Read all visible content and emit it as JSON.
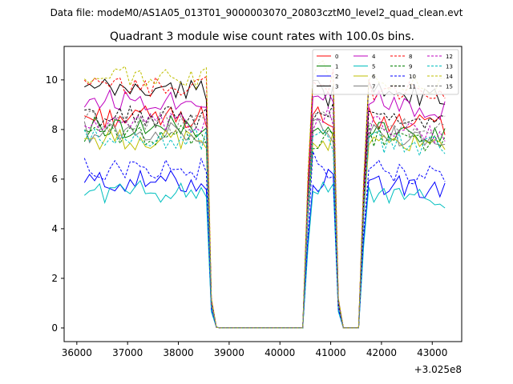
{
  "chart_data": {
    "type": "line",
    "supertitle": "Data file: modeM0/AS1A05_013T01_9000003070_20803cztM0_level2_quad_clean.evt",
    "title": "Quadrant 3 module wise count rates with 100.0s bins.",
    "xlabel": "",
    "ylabel": "",
    "x_offset_label": "+3.025e8",
    "xlim": [
      35750,
      43580
    ],
    "ylim": [
      -0.55,
      11.35
    ],
    "x_ticks": [
      36000,
      37000,
      38000,
      39000,
      40000,
      41000,
      42000,
      43000
    ],
    "x_tick_labels": [
      "36000",
      "37000",
      "38000",
      "39000",
      "40000",
      "41000",
      "42000",
      "43000"
    ],
    "y_ticks": [
      0,
      2,
      4,
      6,
      8,
      10
    ],
    "y_tick_labels": [
      "0",
      "2",
      "4",
      "6",
      "8",
      "10"
    ],
    "legend_position": "upper-right",
    "legend_columns": 4,
    "bin_seconds": 100,
    "segments": [
      {
        "start": 36150,
        "end": 38550
      },
      {
        "start": 40550,
        "end": 41050
      },
      {
        "start": 41650,
        "end": 43250
      }
    ],
    "series": [
      {
        "name": "0",
        "color": "#ff0000",
        "dashed": false,
        "level": 8.5
      },
      {
        "name": "1",
        "color": "#008000",
        "dashed": false,
        "level": 8.1
      },
      {
        "name": "2",
        "color": "#0000ff",
        "dashed": false,
        "level": 5.9
      },
      {
        "name": "3",
        "color": "#000000",
        "dashed": false,
        "level": 9.6
      },
      {
        "name": "4",
        "color": "#bf00bf",
        "dashed": false,
        "level": 9.2
      },
      {
        "name": "5",
        "color": "#00bfbf",
        "dashed": false,
        "level": 5.5
      },
      {
        "name": "6",
        "color": "#bfbf00",
        "dashed": false,
        "level": 7.6
      },
      {
        "name": "7",
        "color": "#808080",
        "dashed": false,
        "level": 7.9
      },
      {
        "name": "8",
        "color": "#ff0000",
        "dashed": true,
        "level": 9.7
      },
      {
        "name": "9",
        "color": "#008000",
        "dashed": true,
        "level": 7.8
      },
      {
        "name": "10",
        "color": "#0000ff",
        "dashed": true,
        "level": 6.4
      },
      {
        "name": "11",
        "color": "#000000",
        "dashed": true,
        "level": 8.5
      },
      {
        "name": "12",
        "color": "#bf00bf",
        "dashed": true,
        "level": 8.2
      },
      {
        "name": "13",
        "color": "#00bfbf",
        "dashed": true,
        "level": 7.6
      },
      {
        "name": "14",
        "color": "#bfbf00",
        "dashed": true,
        "level": 10.1
      },
      {
        "name": "15",
        "color": "#808080",
        "dashed": true,
        "level": 8.3
      }
    ]
  }
}
